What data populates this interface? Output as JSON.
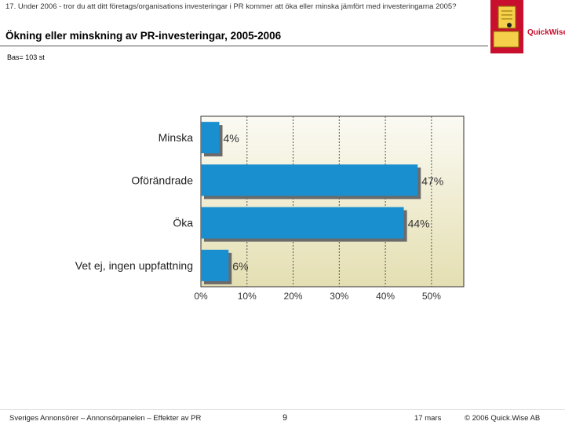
{
  "header": {
    "question": "17. Under 2006 - tror du att ditt företags/organisations investeringar i PR kommer att öka eller minska jämfört med investeringarna 2005?",
    "logo_text": "QuickWise",
    "title": "Ökning eller minskning av PR-investeringar, 2005-2006",
    "base": "Bas= 103 st"
  },
  "colors": {
    "bar": "#1a8fd0",
    "bar_shadow": "#6b6b6b",
    "plot_bg_top": "#fbfaf3",
    "plot_bg_bottom": "#e4dfb2",
    "brand": "#c8102e"
  },
  "chart_data": {
    "type": "bar",
    "orientation": "horizontal",
    "categories": [
      "Minska",
      "Oförändrade",
      "Öka",
      "Vet ej, ingen uppfattning"
    ],
    "values": [
      4,
      47,
      44,
      6
    ],
    "data_labels": [
      "4%",
      "47%",
      "44%",
      "6%"
    ],
    "x_ticks": [
      "0%",
      "10%",
      "20%",
      "30%",
      "40%",
      "50%"
    ],
    "xlim": [
      0,
      57
    ],
    "grid": "vertical dashed"
  },
  "footer": {
    "left": "Sveriges Annonsörer – Annonsörpanelen – Effekter av PR",
    "page": "9",
    "date": "17 mars",
    "copyright": "© 2006 Quick.Wise AB"
  }
}
